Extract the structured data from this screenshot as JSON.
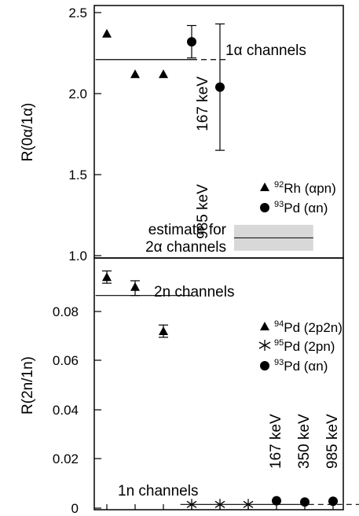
{
  "chart_data": [
    {
      "type": "scatter",
      "ylabel": "R(0α/1α)",
      "ylim": [
        1.0,
        2.5
      ],
      "yticks": [
        "1.0",
        "1.5",
        "2.0",
        "2.5"
      ],
      "series": [
        {
          "name": "92Rh (αpn)",
          "nuclide": "92",
          "reaction": "Rh (αpn)",
          "marker": "triangle",
          "x": [
            1,
            2,
            3
          ],
          "y": [
            2.37,
            2.12,
            2.12
          ]
        },
        {
          "name": "93Pd (αn)",
          "nuclide": "93",
          "reaction": "Pd (αn)",
          "marker": "circle",
          "x": [
            4,
            5
          ],
          "y": [
            2.32,
            2.04
          ],
          "err_low": [
            2.22,
            1.65
          ],
          "err_high": [
            2.42,
            2.43
          ]
        }
      ],
      "reference_lines": [
        {
          "label": "1α channels",
          "y": 2.21,
          "x_solid": [
            0.6,
            4
          ],
          "x_dashed": [
            4,
            5.3
          ]
        }
      ],
      "band": {
        "label_line1": "estimate for",
        "label_line2": "2α channels",
        "y": 1.11,
        "y_low": 1.03,
        "y_high": 1.19,
        "x": [
          5.5,
          8.3
        ]
      },
      "point_labels": [
        "167 keV",
        "985 keV"
      ]
    },
    {
      "type": "scatter",
      "ylabel": "R(2n/1n)",
      "ylim": [
        0,
        0.1
      ],
      "yticks": [
        "0",
        "0.02",
        "0.04",
        "0.06",
        "0.08"
      ],
      "series": [
        {
          "name": "94Pd (2p2n)",
          "nuclide": "94",
          "reaction": "Pd (2p2n)",
          "marker": "triangle",
          "x": [
            1,
            2,
            3
          ],
          "y": [
            0.094,
            0.09,
            0.072
          ],
          "err_low": [
            0.0915,
            0.0865,
            0.0695
          ],
          "err_high": [
            0.0965,
            0.0925,
            0.0745
          ]
        },
        {
          "name": "95Pd (2pn)",
          "nuclide": "95",
          "reaction": "Pd (2pn)",
          "marker": "asterisk",
          "x": [
            4,
            5,
            6
          ],
          "y": [
            0.0015,
            0.0015,
            0.0015
          ]
        },
        {
          "name": "93Pd (αn)",
          "nuclide": "93",
          "reaction": "Pd (αn)",
          "marker": "circle",
          "x": [
            7,
            8,
            9
          ],
          "y": [
            0.003,
            0.0025,
            0.0028
          ]
        }
      ],
      "reference_lines": [
        {
          "label": "2n channels",
          "y": 0.0865,
          "x_solid": [
            0.6,
            4
          ],
          "x_dashed": null
        },
        {
          "label": "1n channels",
          "y": 0.0015,
          "x_solid": [
            3.6,
            7.8
          ],
          "x_dashed": [
            7.8,
            10
          ]
        }
      ],
      "point_labels": [
        "167 keV",
        "350 keV",
        "985 keV"
      ]
    }
  ]
}
